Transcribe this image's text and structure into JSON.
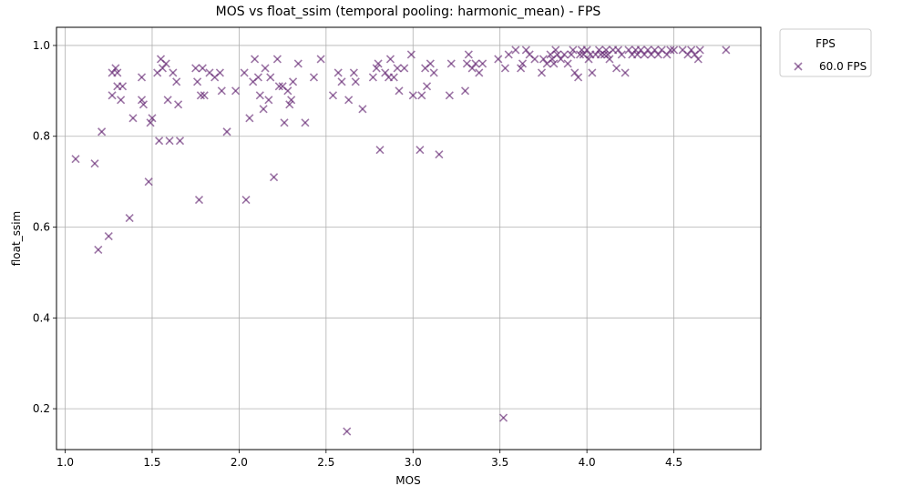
{
  "chart_data": {
    "type": "scatter",
    "title": "MOS vs float_ssim (temporal pooling: harmonic_mean) - FPS",
    "xlabel": "MOS",
    "ylabel": "float_ssim",
    "xlim": [
      0.95,
      5.0
    ],
    "ylim": [
      0.11,
      1.04
    ],
    "xticks": [
      1.0,
      1.5,
      2.0,
      2.5,
      3.0,
      3.5,
      4.0,
      4.5
    ],
    "xtick_labels": [
      "1.0",
      "1.5",
      "2.0",
      "2.5",
      "3.0",
      "3.5",
      "4.0",
      "4.5"
    ],
    "yticks": [
      0.2,
      0.4,
      0.6,
      0.8,
      1.0
    ],
    "ytick_labels": [
      "0.2",
      "0.4",
      "0.6",
      "0.8",
      "1.0"
    ],
    "grid": true,
    "legend": {
      "title": "FPS",
      "placement": "outside-top-right"
    },
    "marker": "x",
    "series": [
      {
        "name": "60.0 FPS",
        "color": "#5c1a6b",
        "points": [
          [
            1.06,
            0.75
          ],
          [
            1.17,
            0.74
          ],
          [
            1.19,
            0.55
          ],
          [
            1.21,
            0.81
          ],
          [
            1.25,
            0.58
          ],
          [
            1.27,
            0.89
          ],
          [
            1.27,
            0.94
          ],
          [
            1.29,
            0.95
          ],
          [
            1.3,
            0.91
          ],
          [
            1.3,
            0.94
          ],
          [
            1.32,
            0.88
          ],
          [
            1.33,
            0.91
          ],
          [
            1.37,
            0.62
          ],
          [
            1.39,
            0.84
          ],
          [
            1.44,
            0.93
          ],
          [
            1.44,
            0.88
          ],
          [
            1.45,
            0.87
          ],
          [
            1.48,
            0.7
          ],
          [
            1.49,
            0.83
          ],
          [
            1.5,
            0.84
          ],
          [
            1.53,
            0.94
          ],
          [
            1.54,
            0.79
          ],
          [
            1.55,
            0.97
          ],
          [
            1.56,
            0.95
          ],
          [
            1.58,
            0.96
          ],
          [
            1.59,
            0.88
          ],
          [
            1.6,
            0.79
          ],
          [
            1.62,
            0.94
          ],
          [
            1.64,
            0.92
          ],
          [
            1.65,
            0.87
          ],
          [
            1.66,
            0.79
          ],
          [
            1.75,
            0.95
          ],
          [
            1.76,
            0.92
          ],
          [
            1.77,
            0.66
          ],
          [
            1.78,
            0.89
          ],
          [
            1.79,
            0.95
          ],
          [
            1.8,
            0.89
          ],
          [
            1.83,
            0.94
          ],
          [
            1.86,
            0.93
          ],
          [
            1.89,
            0.94
          ],
          [
            1.9,
            0.9
          ],
          [
            1.93,
            0.81
          ],
          [
            1.98,
            0.9
          ],
          [
            2.03,
            0.94
          ],
          [
            2.04,
            0.66
          ],
          [
            2.06,
            0.84
          ],
          [
            2.08,
            0.92
          ],
          [
            2.09,
            0.97
          ],
          [
            2.11,
            0.93
          ],
          [
            2.12,
            0.89
          ],
          [
            2.14,
            0.86
          ],
          [
            2.15,
            0.95
          ],
          [
            2.17,
            0.88
          ],
          [
            2.18,
            0.93
          ],
          [
            2.2,
            0.71
          ],
          [
            2.22,
            0.97
          ],
          [
            2.23,
            0.91
          ],
          [
            2.25,
            0.91
          ],
          [
            2.26,
            0.83
          ],
          [
            2.28,
            0.9
          ],
          [
            2.29,
            0.87
          ],
          [
            2.3,
            0.88
          ],
          [
            2.31,
            0.92
          ],
          [
            2.34,
            0.96
          ],
          [
            2.38,
            0.83
          ],
          [
            2.43,
            0.93
          ],
          [
            2.47,
            0.97
          ],
          [
            2.54,
            0.89
          ],
          [
            2.57,
            0.94
          ],
          [
            2.59,
            0.92
          ],
          [
            2.62,
            0.15
          ],
          [
            2.63,
            0.88
          ],
          [
            2.66,
            0.94
          ],
          [
            2.67,
            0.92
          ],
          [
            2.71,
            0.86
          ],
          [
            2.77,
            0.93
          ],
          [
            2.79,
            0.95
          ],
          [
            2.8,
            0.96
          ],
          [
            2.81,
            0.77
          ],
          [
            2.84,
            0.94
          ],
          [
            2.86,
            0.93
          ],
          [
            2.87,
            0.97
          ],
          [
            2.89,
            0.93
          ],
          [
            2.91,
            0.95
          ],
          [
            2.92,
            0.9
          ],
          [
            2.95,
            0.95
          ],
          [
            2.99,
            0.98
          ],
          [
            3.0,
            0.89
          ],
          [
            3.04,
            0.77
          ],
          [
            3.05,
            0.89
          ],
          [
            3.07,
            0.95
          ],
          [
            3.08,
            0.91
          ],
          [
            3.1,
            0.96
          ],
          [
            3.12,
            0.94
          ],
          [
            3.15,
            0.76
          ],
          [
            3.21,
            0.89
          ],
          [
            3.22,
            0.96
          ],
          [
            3.3,
            0.9
          ],
          [
            3.31,
            0.96
          ],
          [
            3.32,
            0.98
          ],
          [
            3.34,
            0.95
          ],
          [
            3.36,
            0.96
          ],
          [
            3.38,
            0.94
          ],
          [
            3.4,
            0.96
          ],
          [
            3.49,
            0.97
          ],
          [
            3.52,
            0.18
          ],
          [
            3.53,
            0.95
          ],
          [
            3.55,
            0.98
          ],
          [
            3.59,
            0.99
          ],
          [
            3.62,
            0.95
          ],
          [
            3.63,
            0.96
          ],
          [
            3.65,
            0.99
          ],
          [
            3.67,
            0.98
          ],
          [
            3.7,
            0.97
          ],
          [
            3.74,
            0.94
          ],
          [
            3.75,
            0.97
          ],
          [
            3.77,
            0.96
          ],
          [
            3.79,
            0.98
          ],
          [
            3.8,
            0.97
          ],
          [
            3.81,
            0.96
          ],
          [
            3.82,
            0.99
          ],
          [
            3.83,
            0.98
          ],
          [
            3.85,
            0.97
          ],
          [
            3.87,
            0.98
          ],
          [
            3.89,
            0.96
          ],
          [
            3.91,
            0.98
          ],
          [
            3.92,
            0.99
          ],
          [
            3.93,
            0.94
          ],
          [
            3.95,
            0.93
          ],
          [
            3.96,
            0.98
          ],
          [
            3.97,
            0.99
          ],
          [
            3.98,
            0.98
          ],
          [
            4.0,
            0.99
          ],
          [
            4.01,
            0.97
          ],
          [
            4.02,
            0.98
          ],
          [
            4.03,
            0.94
          ],
          [
            4.05,
            0.98
          ],
          [
            4.07,
            0.99
          ],
          [
            4.08,
            0.98
          ],
          [
            4.1,
            0.98
          ],
          [
            4.11,
            0.99
          ],
          [
            4.12,
            0.98
          ],
          [
            4.13,
            0.97
          ],
          [
            4.15,
            0.99
          ],
          [
            4.17,
            0.95
          ],
          [
            4.18,
            0.99
          ],
          [
            4.2,
            0.98
          ],
          [
            4.22,
            0.94
          ],
          [
            4.24,
            0.99
          ],
          [
            4.26,
            0.98
          ],
          [
            4.28,
            0.99
          ],
          [
            4.29,
            0.98
          ],
          [
            4.31,
            0.99
          ],
          [
            4.33,
            0.98
          ],
          [
            4.35,
            0.99
          ],
          [
            4.37,
            0.98
          ],
          [
            4.39,
            0.99
          ],
          [
            4.41,
            0.98
          ],
          [
            4.43,
            0.99
          ],
          [
            4.46,
            0.98
          ],
          [
            4.48,
            0.99
          ],
          [
            4.5,
            0.99
          ],
          [
            4.55,
            0.99
          ],
          [
            4.58,
            0.98
          ],
          [
            4.6,
            0.99
          ],
          [
            4.62,
            0.98
          ],
          [
            4.64,
            0.97
          ],
          [
            4.65,
            0.99
          ],
          [
            4.8,
            0.99
          ]
        ]
      }
    ]
  }
}
